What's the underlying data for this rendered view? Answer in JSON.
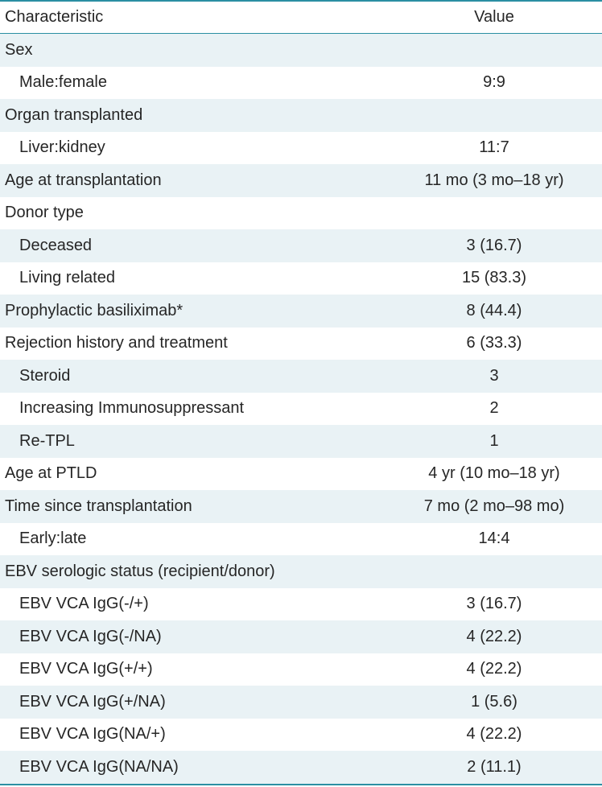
{
  "table": {
    "headers": {
      "characteristic": "Characteristic",
      "value": "Value"
    },
    "rows": [
      {
        "label": "Sex",
        "value": "",
        "indent": false
      },
      {
        "label": "Male:female",
        "value": "9:9",
        "indent": true
      },
      {
        "label": "Organ transplanted",
        "value": "",
        "indent": false
      },
      {
        "label": "Liver:kidney",
        "value": "11:7",
        "indent": true
      },
      {
        "label": "Age at transplantation",
        "value": "11 mo (3 mo–18 yr)",
        "indent": false
      },
      {
        "label": "Donor type",
        "value": "",
        "indent": false
      },
      {
        "label": "Deceased",
        "value": "3 (16.7)",
        "indent": true
      },
      {
        "label": "Living related",
        "value": "15 (83.3)",
        "indent": true
      },
      {
        "label": "Prophylactic basiliximab*",
        "value": "8 (44.4)",
        "indent": false
      },
      {
        "label": "Rejection history and treatment",
        "value": "6 (33.3)",
        "indent": false
      },
      {
        "label": "Steroid",
        "value": "3",
        "indent": true
      },
      {
        "label": "Increasing Immunosuppressant",
        "value": "2",
        "indent": true
      },
      {
        "label": "Re-TPL",
        "value": "1",
        "indent": true
      },
      {
        "label": "Age at PTLD",
        "value": "4 yr (10 mo–18 yr)",
        "indent": false
      },
      {
        "label": "Time since transplantation",
        "value": "7 mo (2 mo–98 mo)",
        "indent": false
      },
      {
        "label": "Early:late",
        "value": "14:4",
        "indent": true
      },
      {
        "label": "EBV serologic status (recipient/donor)",
        "value": "",
        "indent": false
      },
      {
        "label": "EBV VCA IgG(-/+)",
        "value": "3 (16.7)",
        "indent": true
      },
      {
        "label": "EBV VCA IgG(-/NA)",
        "value": "4 (22.2)",
        "indent": true
      },
      {
        "label": "EBV VCA IgG(+/+)",
        "value": "4 (22.2)",
        "indent": true
      },
      {
        "label": "EBV VCA IgG(+/NA)",
        "value": "1 (5.6)",
        "indent": true
      },
      {
        "label": "EBV VCA IgG(NA/+)",
        "value": "4 (22.2)",
        "indent": true
      },
      {
        "label": "EBV VCA IgG(NA/NA)",
        "value": "2 (11.1)",
        "indent": true
      }
    ]
  },
  "colors": {
    "rule": "#2b8fa3",
    "stripe": "#e9f2f5",
    "text": "#262626"
  }
}
